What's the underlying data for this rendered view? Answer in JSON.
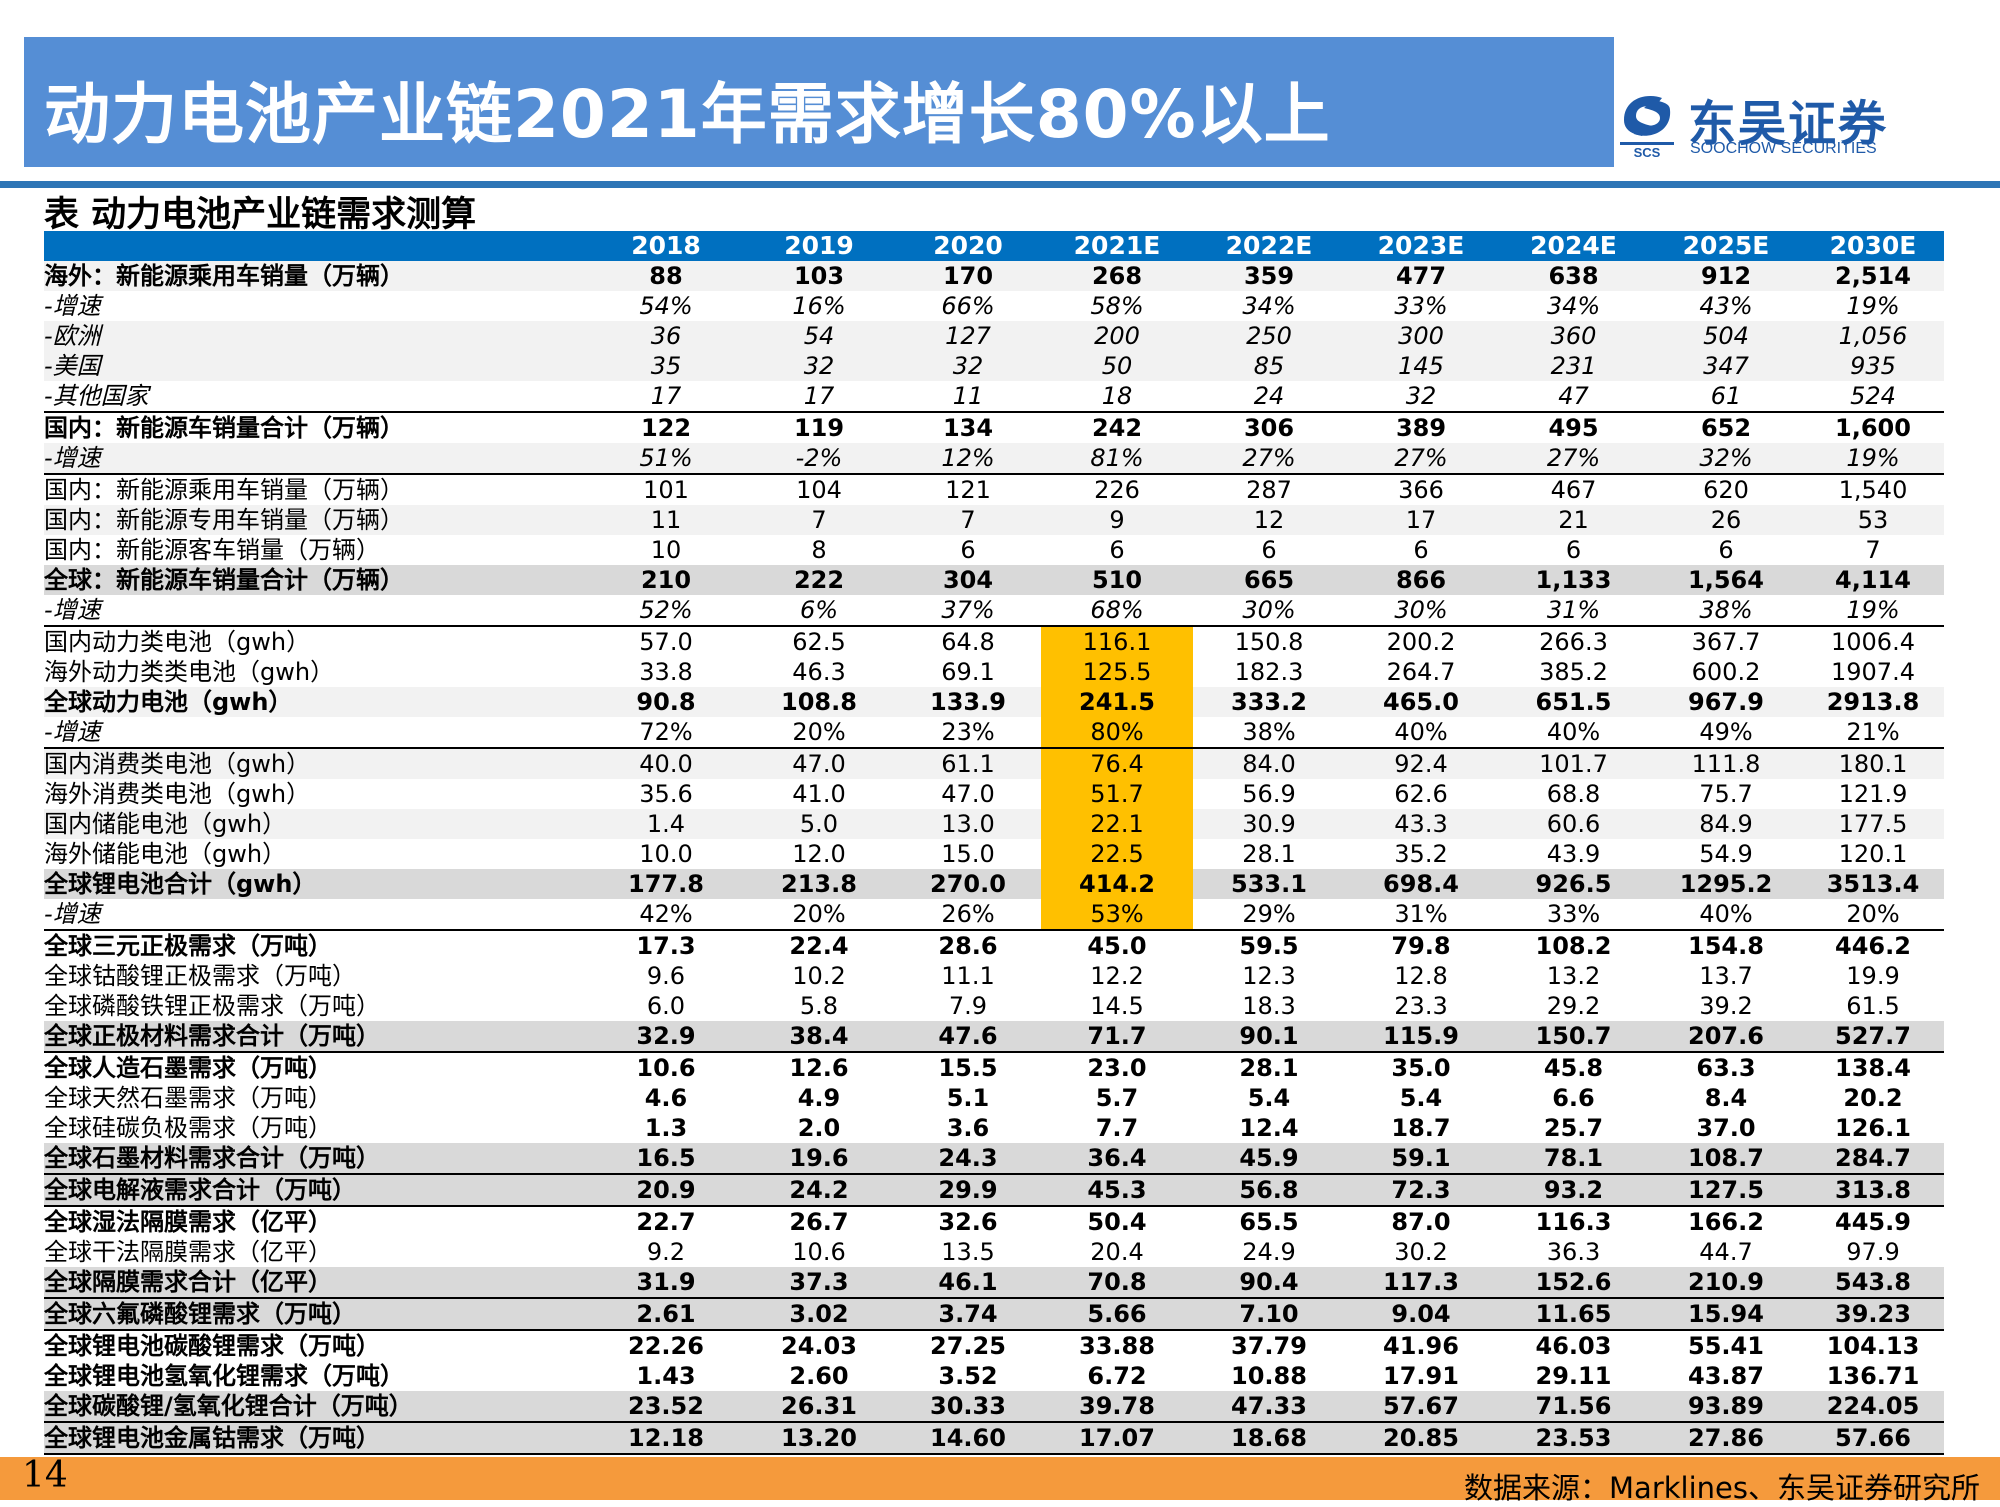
{
  "slide_title": "动力电池产业链2021年需求增长80%以上",
  "logo": {
    "cn": "东吴证券",
    "en": "SOOCHOW SECURITIES",
    "mark": "SCS"
  },
  "table_title": "表  动力电池产业链需求测算",
  "table": {
    "headers": [
      "",
      "2018",
      "2019",
      "2020",
      "2021E",
      "2022E",
      "2023E",
      "2024E",
      "2025E",
      "2030E"
    ],
    "highlight_color": "#ffc000",
    "rows": [
      {
        "label": "海外：新能源乘用车销量（万辆）",
        "values": [
          "88",
          "103",
          "170",
          "268",
          "359",
          "477",
          "638",
          "912",
          "2,514"
        ],
        "style": "b",
        "bg": "g"
      },
      {
        "label": "-增速",
        "values": [
          "54%",
          "16%",
          "66%",
          "58%",
          "34%",
          "33%",
          "34%",
          "43%",
          "19%"
        ],
        "style": "i",
        "bg": ""
      },
      {
        "label": "-欧洲",
        "values": [
          "36",
          "54",
          "127",
          "200",
          "250",
          "300",
          "360",
          "504",
          "1,056"
        ],
        "style": "i",
        "bg": "g"
      },
      {
        "label": "-美国",
        "values": [
          "35",
          "32",
          "32",
          "50",
          "85",
          "145",
          "231",
          "347",
          "935"
        ],
        "style": "i",
        "bg": "g"
      },
      {
        "label": "-其他国家",
        "values": [
          "17",
          "17",
          "11",
          "18",
          "24",
          "32",
          "47",
          "61",
          "524"
        ],
        "style": "i",
        "bg": ""
      },
      {
        "label": "国内：新能源车销量合计（万辆）",
        "values": [
          "122",
          "119",
          "134",
          "242",
          "306",
          "389",
          "495",
          "652",
          "1,600"
        ],
        "style": "b",
        "bg": "",
        "top": true
      },
      {
        "label": "-增速",
        "values": [
          "51%",
          "-2%",
          "12%",
          "81%",
          "27%",
          "27%",
          "27%",
          "32%",
          "19%"
        ],
        "style": "i",
        "bg": "g"
      },
      {
        "label": "国内：新能源乘用车销量（万辆）",
        "values": [
          "101",
          "104",
          "121",
          "226",
          "287",
          "366",
          "467",
          "620",
          "1,540"
        ],
        "style": "",
        "bg": "",
        "top": true
      },
      {
        "label": "国内：新能源专用车销量（万辆）",
        "values": [
          "11",
          "7",
          "7",
          "9",
          "12",
          "17",
          "21",
          "26",
          "53"
        ],
        "style": "",
        "bg": "g"
      },
      {
        "label": "国内：新能源客车销量（万辆）",
        "values": [
          "10",
          "8",
          "6",
          "6",
          "6",
          "6",
          "6",
          "6",
          "7"
        ],
        "style": "",
        "bg": ""
      },
      {
        "label": "全球：新能源车销量合计（万辆）",
        "values": [
          "210",
          "222",
          "304",
          "510",
          "665",
          "866",
          "1,133",
          "1,564",
          "4,114"
        ],
        "style": "b",
        "bg": "d"
      },
      {
        "label": "-增速",
        "values": [
          "52%",
          "6%",
          "37%",
          "68%",
          "30%",
          "30%",
          "31%",
          "38%",
          "19%"
        ],
        "style": "i",
        "bg": ""
      },
      {
        "label": "国内动力类电池（gwh）",
        "values": [
          "57.0",
          "62.5",
          "64.8",
          "116.1",
          "150.8",
          "200.2",
          "266.3",
          "367.7",
          "1006.4"
        ],
        "style": "",
        "bg": "",
        "top": true,
        "hl": true
      },
      {
        "label": "海外动力类类电池（gwh）",
        "values": [
          "33.8",
          "46.3",
          "69.1",
          "125.5",
          "182.3",
          "264.7",
          "385.2",
          "600.2",
          "1907.4"
        ],
        "style": "",
        "bg": "",
        "hl": true
      },
      {
        "label": "全球动力电池（gwh）",
        "values": [
          "90.8",
          "108.8",
          "133.9",
          "241.5",
          "333.2",
          "465.0",
          "651.5",
          "967.9",
          "2913.8"
        ],
        "style": "b",
        "bg": "g",
        "hl": true
      },
      {
        "label": "-增速",
        "values": [
          "72%",
          "20%",
          "23%",
          "80%",
          "38%",
          "40%",
          "40%",
          "49%",
          "21%"
        ],
        "style": "i-lab",
        "bg": "",
        "hl": true
      },
      {
        "label": "国内消费类电池（gwh）",
        "values": [
          "40.0",
          "47.0",
          "61.1",
          "76.4",
          "84.0",
          "92.4",
          "101.7",
          "111.8",
          "180.1"
        ],
        "style": "",
        "bg": "g",
        "top": true,
        "hl": true
      },
      {
        "label": "海外消费类电池（gwh）",
        "values": [
          "35.6",
          "41.0",
          "47.0",
          "51.7",
          "56.9",
          "62.6",
          "68.8",
          "75.7",
          "121.9"
        ],
        "style": "",
        "bg": "",
        "hl": true
      },
      {
        "label": "国内储能电池（gwh）",
        "values": [
          "1.4",
          "5.0",
          "13.0",
          "22.1",
          "30.9",
          "43.3",
          "60.6",
          "84.9",
          "177.5"
        ],
        "style": "",
        "bg": "g",
        "hl": true
      },
      {
        "label": "海外储能电池（gwh）",
        "values": [
          "10.0",
          "12.0",
          "15.0",
          "22.5",
          "28.1",
          "35.2",
          "43.9",
          "54.9",
          "120.1"
        ],
        "style": "",
        "bg": "",
        "hl": true
      },
      {
        "label": "全球锂电池合计（gwh）",
        "values": [
          "177.8",
          "213.8",
          "270.0",
          "414.2",
          "533.1",
          "698.4",
          "926.5",
          "1295.2",
          "3513.4"
        ],
        "style": "b",
        "bg": "d",
        "hl": true
      },
      {
        "label": "-增速",
        "values": [
          "42%",
          "20%",
          "26%",
          "53%",
          "29%",
          "31%",
          "33%",
          "40%",
          "20%"
        ],
        "style": "i-lab",
        "bg": "",
        "hl": true
      },
      {
        "label": "全球三元正极需求（万吨）",
        "values": [
          "17.3",
          "22.4",
          "28.6",
          "45.0",
          "59.5",
          "79.8",
          "108.2",
          "154.8",
          "446.2"
        ],
        "style": "b",
        "bg": "",
        "top": true
      },
      {
        "label": "全球钴酸锂正极需求（万吨）",
        "values": [
          "9.6",
          "10.2",
          "11.1",
          "12.2",
          "12.3",
          "12.8",
          "13.2",
          "13.7",
          "19.9"
        ],
        "style": "",
        "bg": ""
      },
      {
        "label": "全球磷酸铁锂正极需求（万吨）",
        "values": [
          "6.0",
          "5.8",
          "7.9",
          "14.5",
          "18.3",
          "23.3",
          "29.2",
          "39.2",
          "61.5"
        ],
        "style": "",
        "bg": ""
      },
      {
        "label": "全球正极材料需求合计（万吨）",
        "values": [
          "32.9",
          "38.4",
          "47.6",
          "71.7",
          "90.1",
          "115.9",
          "150.7",
          "207.6",
          "527.7"
        ],
        "style": "b",
        "bg": "d"
      },
      {
        "label": "全球人造石墨需求（万吨）",
        "values": [
          "10.6",
          "12.6",
          "15.5",
          "23.0",
          "28.1",
          "35.0",
          "45.8",
          "63.3",
          "138.4"
        ],
        "style": "b",
        "bg": "",
        "top": true
      },
      {
        "label": "全球天然石墨需求（万吨）",
        "values": [
          "4.6",
          "4.9",
          "5.1",
          "5.7",
          "5.4",
          "5.4",
          "6.6",
          "8.4",
          "20.2"
        ],
        "style": "bv",
        "bg": ""
      },
      {
        "label": "全球硅碳负极需求（万吨）",
        "values": [
          "1.3",
          "2.0",
          "3.6",
          "7.7",
          "12.4",
          "18.7",
          "25.7",
          "37.0",
          "126.1"
        ],
        "style": "bv",
        "bg": ""
      },
      {
        "label": "全球石墨材料需求合计（万吨）",
        "values": [
          "16.5",
          "19.6",
          "24.3",
          "36.4",
          "45.9",
          "59.1",
          "78.1",
          "108.7",
          "284.7"
        ],
        "style": "b",
        "bg": "d"
      },
      {
        "label": "全球电解液需求合计（万吨）",
        "values": [
          "20.9",
          "24.2",
          "29.9",
          "45.3",
          "56.8",
          "72.3",
          "93.2",
          "127.5",
          "313.8"
        ],
        "style": "b",
        "bg": "d",
        "top": true
      },
      {
        "label": "全球湿法隔膜需求（亿平）",
        "values": [
          "22.7",
          "26.7",
          "32.6",
          "50.4",
          "65.5",
          "87.0",
          "116.3",
          "166.2",
          "445.9"
        ],
        "style": "b",
        "bg": "",
        "top": true
      },
      {
        "label": "全球干法隔膜需求（亿平）",
        "values": [
          "9.2",
          "10.6",
          "13.5",
          "20.4",
          "24.9",
          "30.2",
          "36.3",
          "44.7",
          "97.9"
        ],
        "style": "",
        "bg": ""
      },
      {
        "label": "全球隔膜需求合计（亿平）",
        "values": [
          "31.9",
          "37.3",
          "46.1",
          "70.8",
          "90.4",
          "117.3",
          "152.6",
          "210.9",
          "543.8"
        ],
        "style": "b",
        "bg": "d"
      },
      {
        "label": "全球六氟磷酸锂需求（万吨）",
        "values": [
          "2.61",
          "3.02",
          "3.74",
          "5.66",
          "7.10",
          "9.04",
          "11.65",
          "15.94",
          "39.23"
        ],
        "style": "b",
        "bg": "d",
        "top": true
      },
      {
        "label": "全球锂电池碳酸锂需求（万吨）",
        "values": [
          "22.26",
          "24.03",
          "27.25",
          "33.88",
          "37.79",
          "41.96",
          "46.03",
          "55.41",
          "104.13"
        ],
        "style": "b",
        "bg": "",
        "top": true
      },
      {
        "label": "全球锂电池氢氧化锂需求（万吨）",
        "values": [
          "1.43",
          "2.60",
          "3.52",
          "6.72",
          "10.88",
          "17.91",
          "29.11",
          "43.87",
          "136.71"
        ],
        "style": "b",
        "bg": ""
      },
      {
        "label": "全球碳酸锂/氢氧化锂合计（万吨）",
        "values": [
          "23.52",
          "26.31",
          "30.33",
          "39.78",
          "47.33",
          "57.67",
          "71.56",
          "93.89",
          "224.05"
        ],
        "style": "b",
        "bg": "d"
      },
      {
        "label": "全球锂电池金属钴需求（万吨）",
        "values": [
          "12.18",
          "13.20",
          "14.60",
          "17.07",
          "18.68",
          "20.85",
          "23.53",
          "27.86",
          "57.66"
        ],
        "style": "b",
        "bg": "d",
        "top": true,
        "last": true
      }
    ]
  },
  "page_number": "14",
  "source": "数据来源：Marklines、东吴证券研究所",
  "colors": {
    "title_bar": "#558ed5",
    "header": "#0070c0",
    "footer": "#f59a3c",
    "logo": "#1f5aa8"
  }
}
